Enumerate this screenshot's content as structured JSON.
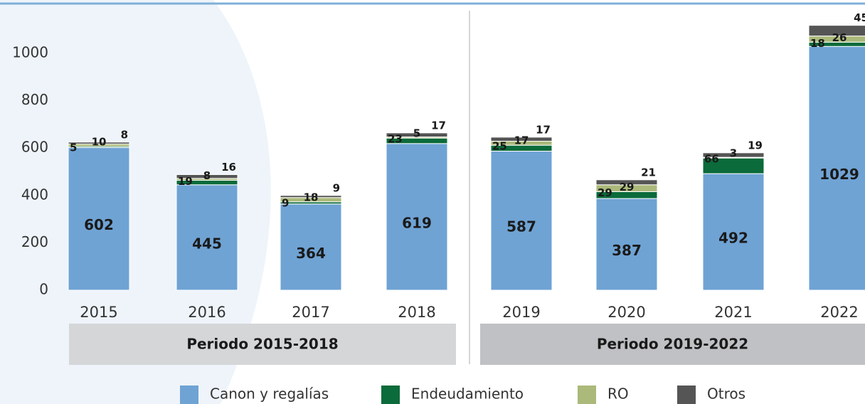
{
  "chart_data": {
    "type": "stacked_bar",
    "categories": [
      "2015",
      "2016",
      "2017",
      "2018",
      "2019",
      "2020",
      "2021",
      "2022"
    ],
    "series": [
      {
        "name": "Canon y regalías",
        "color": "#6fa3d4",
        "values": [
          602,
          445,
          364,
          619,
          587,
          387,
          492,
          1029
        ]
      },
      {
        "name": "Endeudamiento",
        "color": "#0b6b3a",
        "values": [
          5,
          19,
          9,
          23,
          25,
          29,
          66,
          18
        ]
      },
      {
        "name": "RO",
        "color": "#abb97a",
        "values": [
          10,
          8,
          18,
          5,
          17,
          29,
          3,
          26
        ]
      },
      {
        "name": "Otros",
        "color": "#555555",
        "values": [
          8,
          16,
          9,
          17,
          17,
          21,
          19,
          45
        ]
      }
    ],
    "periods": [
      {
        "label": "Periodo 2015-2018",
        "color": "#d4d6d8"
      },
      {
        "label": "Periodo 2019-2022",
        "color": "#bfc1c4"
      }
    ],
    "ylim": [
      0,
      1225
    ],
    "yticks": [
      0,
      200,
      400,
      600,
      800,
      1000
    ]
  }
}
